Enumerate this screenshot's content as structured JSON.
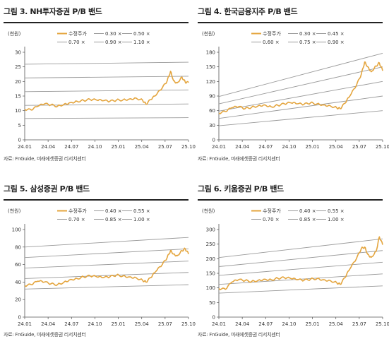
{
  "colors": {
    "price": "#E4A53E",
    "band": "#9A9A9A",
    "axis": "#555555",
    "rule": "#222222"
  },
  "chart_data": [
    {
      "type": "line",
      "title": "그림 3. NH투자증권 P/B 밴드",
      "source": "자료: FnGuide, 미래에셋증권 리서치센터",
      "ylabel": "(천원)",
      "ylim": [
        0,
        30
      ],
      "yticks": [
        0,
        5,
        10,
        15,
        20,
        25,
        30
      ],
      "xticks": [
        "24.01",
        "24.04",
        "24.07",
        "24.10",
        "25.01",
        "25.04",
        "25.07",
        "25.10"
      ],
      "legend": [
        [
          "수정주가",
          "0.30 ×",
          "0.50 ×"
        ],
        [
          "0.70 ×",
          "0.90 ×",
          "1.10 ×"
        ]
      ],
      "bands": [
        {
          "name": "0.30 ×",
          "start": 7.3,
          "end": 7.6
        },
        {
          "name": "0.50 ×",
          "start": 11.8,
          "end": 12.3
        },
        {
          "name": "0.70 ×",
          "start": 16.5,
          "end": 17.1
        },
        {
          "name": "0.90 ×",
          "start": 21.2,
          "end": 21.8
        },
        {
          "name": "1.10 ×",
          "start": 25.9,
          "end": 26.6
        }
      ],
      "price": {
        "name": "수정주가",
        "x": [
          0,
          0.04,
          0.08,
          0.12,
          0.16,
          0.2,
          0.24,
          0.28,
          0.32,
          0.36,
          0.4,
          0.44,
          0.48,
          0.52,
          0.56,
          0.6,
          0.64,
          0.68,
          0.72,
          0.74,
          0.77,
          0.8,
          0.84,
          0.87,
          0.89,
          0.91,
          0.93,
          0.96,
          0.98,
          1.0
        ],
        "y": [
          10.5,
          10.2,
          11.5,
          12.3,
          12.0,
          11.5,
          12.2,
          12.8,
          13.2,
          13.5,
          13.8,
          13.6,
          13.4,
          13.2,
          13.6,
          13.7,
          14.0,
          14.3,
          13.6,
          12.2,
          13.8,
          15.2,
          17.8,
          20.2,
          23.5,
          20.2,
          19.5,
          21.5,
          19.8,
          19.6
        ]
      }
    },
    {
      "type": "line",
      "title": "그림 4. 한국금융지주 P/B 밴드",
      "source": "자료: FnGuide, 미래에셋증권 리서치센터",
      "ylabel": "(천원)",
      "ylim": [
        0,
        180
      ],
      "yticks": [
        0,
        30,
        60,
        90,
        120,
        150,
        180
      ],
      "xticks": [
        "24.01",
        "24.04",
        "24.07",
        "24.10",
        "25.01",
        "25.04",
        "25.07",
        "25.10"
      ],
      "legend": [
        [
          "수정주가",
          "0.30 ×",
          "0.45 ×"
        ],
        [
          "0.60 ×",
          "0.75 ×",
          "0.90 ×"
        ]
      ],
      "bands": [
        {
          "name": "0.30 ×",
          "start": 29,
          "end": 60
        },
        {
          "name": "0.45 ×",
          "start": 44,
          "end": 90
        },
        {
          "name": "0.60 ×",
          "start": 59,
          "end": 120
        },
        {
          "name": "0.75 ×",
          "start": 74,
          "end": 150
        },
        {
          "name": "0.90 ×",
          "start": 89,
          "end": 178
        }
      ],
      "price": {
        "name": "수정주가",
        "x": [
          0,
          0.04,
          0.08,
          0.12,
          0.16,
          0.2,
          0.24,
          0.28,
          0.32,
          0.36,
          0.4,
          0.44,
          0.48,
          0.52,
          0.56,
          0.6,
          0.64,
          0.68,
          0.72,
          0.74,
          0.77,
          0.8,
          0.84,
          0.87,
          0.89,
          0.91,
          0.93,
          0.96,
          0.98,
          1.0
        ],
        "y": [
          55,
          58,
          66,
          68,
          64,
          67,
          70,
          72,
          68,
          71,
          74,
          76,
          74,
          73,
          76,
          74,
          72,
          70,
          66,
          64,
          75,
          90,
          112,
          135,
          160,
          150,
          140,
          152,
          158,
          142
        ]
      }
    },
    {
      "type": "line",
      "title": "그림 5. 삼성증권 P/B 밴드",
      "source": "자료: FnGuide, 미래에셋증권 리서치센터",
      "ylabel": "(천원)",
      "ylim": [
        0,
        100
      ],
      "yticks": [
        0,
        20,
        40,
        60,
        80,
        100
      ],
      "xticks": [
        "24.01",
        "24.04",
        "24.07",
        "24.10",
        "25.01",
        "25.04",
        "25.07",
        "25.10"
      ],
      "legend": [
        [
          "수정주가",
          "0.40 ×",
          "0.55 ×"
        ],
        [
          "0.70 ×",
          "0.85 ×",
          "1.00 ×"
        ]
      ],
      "bands": [
        {
          "name": "0.40 ×",
          "start": 32,
          "end": 37
        },
        {
          "name": "0.55 ×",
          "start": 44,
          "end": 51
        },
        {
          "name": "0.70 ×",
          "start": 56,
          "end": 64
        },
        {
          "name": "0.85 ×",
          "start": 68,
          "end": 78
        },
        {
          "name": "1.00 ×",
          "start": 80,
          "end": 91
        }
      ],
      "price": {
        "name": "수정주가",
        "x": [
          0,
          0.04,
          0.08,
          0.12,
          0.16,
          0.2,
          0.24,
          0.28,
          0.32,
          0.36,
          0.4,
          0.44,
          0.48,
          0.52,
          0.56,
          0.6,
          0.64,
          0.68,
          0.72,
          0.74,
          0.77,
          0.8,
          0.84,
          0.87,
          0.89,
          0.91,
          0.93,
          0.96,
          0.98,
          1.0
        ],
        "y": [
          36,
          37,
          41,
          40,
          38,
          37,
          40,
          43,
          44,
          46,
          47,
          46,
          45,
          46,
          48,
          47,
          46,
          45,
          42,
          40,
          45,
          52,
          60,
          68,
          76,
          72,
          70,
          76,
          78,
          72
        ]
      }
    },
    {
      "type": "line",
      "title": "그림 6. 키움증권 P/B 밴드",
      "source": "자료: FnGuide, 미래에셋증권 리서치센터",
      "ylabel": "(천원)",
      "ylim": [
        0,
        300
      ],
      "yticks": [
        0,
        50,
        100,
        150,
        200,
        250,
        300
      ],
      "xticks": [
        "24.01",
        "24.04",
        "24.07",
        "24.10",
        "25.01",
        "25.04",
        "25.07",
        "25.10"
      ],
      "legend": [
        [
          "수정주가",
          "0.40 ×",
          "0.55 ×"
        ],
        [
          "0.70 ×",
          "0.85 ×",
          "1.00 ×"
        ]
      ],
      "bands": [
        {
          "name": "0.40 ×",
          "start": 82,
          "end": 107
        },
        {
          "name": "0.55 ×",
          "start": 112,
          "end": 148
        },
        {
          "name": "0.70 ×",
          "start": 143,
          "end": 188
        },
        {
          "name": "0.85 ×",
          "start": 173,
          "end": 228
        },
        {
          "name": "1.00 ×",
          "start": 204,
          "end": 268
        }
      ],
      "price": {
        "name": "수정주가",
        "x": [
          0,
          0.04,
          0.08,
          0.12,
          0.16,
          0.2,
          0.24,
          0.28,
          0.32,
          0.36,
          0.4,
          0.44,
          0.48,
          0.52,
          0.56,
          0.6,
          0.64,
          0.68,
          0.72,
          0.74,
          0.77,
          0.8,
          0.84,
          0.87,
          0.89,
          0.91,
          0.93,
          0.96,
          0.98,
          1.0
        ],
        "y": [
          98,
          95,
          120,
          128,
          125,
          122,
          126,
          130,
          128,
          133,
          135,
          132,
          128,
          126,
          130,
          132,
          128,
          125,
          118,
          112,
          135,
          165,
          200,
          235,
          240,
          215,
          205,
          225,
          275,
          248
        ]
      }
    }
  ]
}
